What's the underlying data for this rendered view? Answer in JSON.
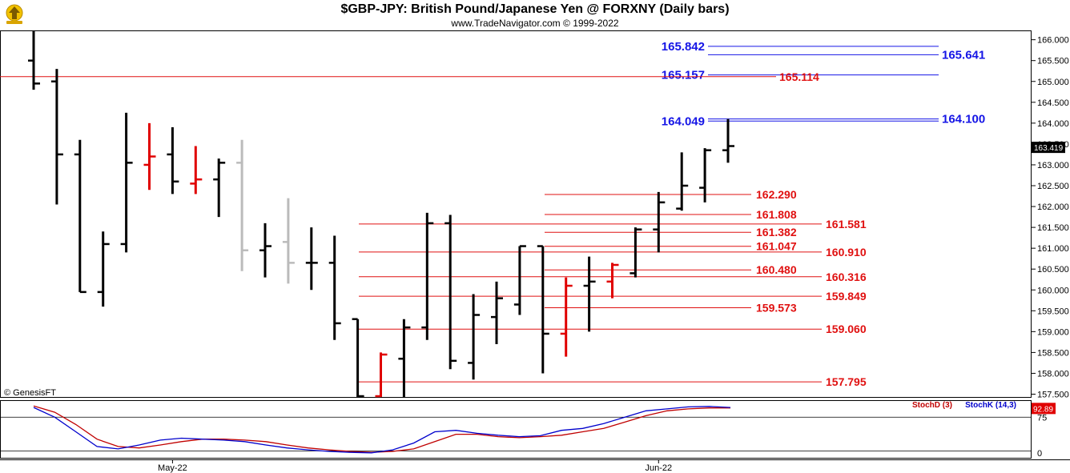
{
  "header": {
    "title": "$GBP-JPY:  British Pound/Japanese Yen @ FORXNY  (Daily bars)",
    "subtitle": "www.TradeNavigator.com © 1999-2022",
    "watermark": "© GenesisFT",
    "logo_icon": "trade-navigator-logo-icon"
  },
  "colors": {
    "up_bar": "#000000",
    "flat_bar": "#bbbbbb",
    "down_bar": "#e00000",
    "blue_level": "#1515e6",
    "red_level": "#e01010",
    "stoch_d": "#c00000",
    "stoch_k": "#0000cc",
    "last_price_bg": "#000000",
    "last_stoch_bg": "#e00000"
  },
  "chart_data": [
    {
      "type": "ohlc",
      "title": "$GBP-JPY:  British Pound/Japanese Yen @ FORXNY  (Daily bars)",
      "ylim": [
        157.3,
        166.3
      ],
      "y_ticks": [
        "157.500",
        "158.000",
        "158.500",
        "159.000",
        "159.500",
        "160.000",
        "160.500",
        "161.000",
        "161.500",
        "162.000",
        "162.500",
        "163.000",
        "163.500",
        "164.000",
        "164.500",
        "165.000",
        "165.500",
        "166.000"
      ],
      "x_labels": [
        {
          "label": "May-22",
          "bar_index": 6
        },
        {
          "label": "Jun-22",
          "bar_index": 27
        }
      ],
      "last_price": "163.419",
      "bars": [
        {
          "o": 165.5,
          "h": 166.4,
          "l": 164.8,
          "c": 164.95,
          "color": "black"
        },
        {
          "o": 165.0,
          "h": 165.3,
          "l": 162.05,
          "c": 163.25,
          "color": "black"
        },
        {
          "o": 163.25,
          "h": 163.6,
          "l": 159.95,
          "c": 159.95,
          "color": "black"
        },
        {
          "o": 159.95,
          "h": 161.4,
          "l": 159.6,
          "c": 161.1,
          "color": "black"
        },
        {
          "o": 161.1,
          "h": 164.25,
          "l": 160.9,
          "c": 163.05,
          "color": "black"
        },
        {
          "o": 163.0,
          "h": 164.0,
          "l": 162.4,
          "c": 163.2,
          "color": "red"
        },
        {
          "o": 163.25,
          "h": 163.9,
          "l": 162.3,
          "c": 162.6,
          "color": "black"
        },
        {
          "o": 162.55,
          "h": 163.45,
          "l": 162.3,
          "c": 162.65,
          "color": "red"
        },
        {
          "o": 162.65,
          "h": 163.15,
          "l": 161.75,
          "c": 163.05,
          "color": "black"
        },
        {
          "o": 163.05,
          "h": 163.6,
          "l": 160.45,
          "c": 160.95,
          "color": "grey"
        },
        {
          "o": 160.95,
          "h": 161.6,
          "l": 160.3,
          "c": 161.05,
          "color": "black"
        },
        {
          "o": 161.15,
          "h": 162.2,
          "l": 160.15,
          "c": 160.65,
          "color": "grey"
        },
        {
          "o": 160.65,
          "h": 161.5,
          "l": 160.0,
          "c": 160.65,
          "color": "black"
        },
        {
          "o": 160.65,
          "h": 161.3,
          "l": 158.8,
          "c": 159.2,
          "color": "black"
        },
        {
          "o": 159.3,
          "h": 159.3,
          "l": 157.0,
          "c": 157.3,
          "color": "black"
        },
        {
          "o": 157.3,
          "h": 158.5,
          "l": 157.0,
          "c": 158.45,
          "color": "red"
        },
        {
          "o": 158.35,
          "h": 159.3,
          "l": 157.0,
          "c": 159.1,
          "color": "black"
        },
        {
          "o": 159.1,
          "h": 161.85,
          "l": 158.8,
          "c": 161.6,
          "color": "black"
        },
        {
          "o": 161.6,
          "h": 161.8,
          "l": 158.1,
          "c": 158.3,
          "color": "black"
        },
        {
          "o": 158.25,
          "h": 159.9,
          "l": 157.85,
          "c": 159.4,
          "color": "black"
        },
        {
          "o": 159.35,
          "h": 160.2,
          "l": 158.7,
          "c": 159.8,
          "color": "black"
        },
        {
          "o": 159.65,
          "h": 161.05,
          "l": 159.4,
          "c": 161.05,
          "color": "black"
        },
        {
          "o": 161.05,
          "h": 161.05,
          "l": 158.0,
          "c": 158.95,
          "color": "black"
        },
        {
          "o": 158.95,
          "h": 160.3,
          "l": 158.4,
          "c": 160.1,
          "color": "red"
        },
        {
          "o": 160.1,
          "h": 160.8,
          "l": 159.0,
          "c": 160.2,
          "color": "black"
        },
        {
          "o": 160.2,
          "h": 160.65,
          "l": 159.8,
          "c": 160.6,
          "color": "red"
        },
        {
          "o": 160.4,
          "h": 161.5,
          "l": 160.3,
          "c": 161.45,
          "color": "black"
        },
        {
          "o": 161.45,
          "h": 162.35,
          "l": 160.9,
          "c": 162.1,
          "color": "black"
        },
        {
          "o": 161.95,
          "h": 163.3,
          "l": 161.9,
          "c": 162.5,
          "color": "black"
        },
        {
          "o": 162.45,
          "h": 163.4,
          "l": 162.1,
          "c": 163.35,
          "color": "black"
        },
        {
          "o": 163.35,
          "h": 164.1,
          "l": 163.05,
          "c": 163.45,
          "color": "black"
        }
      ],
      "levels": [
        {
          "value": 165.842,
          "label": "165.842",
          "color": "blue",
          "side": "left"
        },
        {
          "value": 165.641,
          "label": "165.641",
          "color": "blue",
          "side": "right"
        },
        {
          "value": 165.157,
          "label": "165.157",
          "color": "blue",
          "side": "left"
        },
        {
          "value": 165.114,
          "label": "165.114",
          "color": "red",
          "side": "mid"
        },
        {
          "value": 164.1,
          "label": "164.100",
          "color": "blue",
          "side": "right"
        },
        {
          "value": 164.049,
          "label": "164.049",
          "color": "blue",
          "side": "left"
        },
        {
          "value": 162.29,
          "label": "162.290",
          "color": "red",
          "side": "near"
        },
        {
          "value": 161.808,
          "label": "161.808",
          "color": "red",
          "side": "near"
        },
        {
          "value": 161.581,
          "label": "161.581",
          "color": "red",
          "side": "far"
        },
        {
          "value": 161.382,
          "label": "161.382",
          "color": "red",
          "side": "near"
        },
        {
          "value": 161.047,
          "label": "161.047",
          "color": "red",
          "side": "near"
        },
        {
          "value": 160.91,
          "label": "160.910",
          "color": "red",
          "side": "far"
        },
        {
          "value": 160.48,
          "label": "160.480",
          "color": "red",
          "side": "near"
        },
        {
          "value": 160.316,
          "label": "160.316",
          "color": "red",
          "side": "far"
        },
        {
          "value": 159.849,
          "label": "159.849",
          "color": "red",
          "side": "far"
        },
        {
          "value": 159.573,
          "label": "159.573",
          "color": "red",
          "side": "near"
        },
        {
          "value": 159.06,
          "label": "159.060",
          "color": "red",
          "side": "far"
        },
        {
          "value": 157.795,
          "label": "157.795",
          "color": "red",
          "side": "far"
        }
      ]
    },
    {
      "type": "line",
      "title": "",
      "ylim": [
        0,
        100
      ],
      "y_ticks": [
        "0",
        "75"
      ],
      "last_value": "92.89",
      "series": [
        {
          "name": "StochD (3)",
          "values": [
            98,
            85,
            60,
            30,
            15,
            12,
            18,
            25,
            30,
            30,
            28,
            25,
            18,
            12,
            8,
            5,
            3,
            5,
            10,
            25,
            40,
            40,
            35,
            33,
            35,
            38,
            45,
            52,
            65,
            78,
            88,
            92,
            94,
            94
          ]
        },
        {
          "name": "StochK (14,3)",
          "values": [
            95,
            75,
            45,
            15,
            10,
            18,
            28,
            32,
            30,
            28,
            25,
            18,
            12,
            8,
            5,
            3,
            2,
            8,
            22,
            45,
            48,
            42,
            38,
            35,
            37,
            48,
            52,
            62,
            75,
            88,
            92,
            96,
            97,
            95
          ]
        }
      ]
    }
  ]
}
